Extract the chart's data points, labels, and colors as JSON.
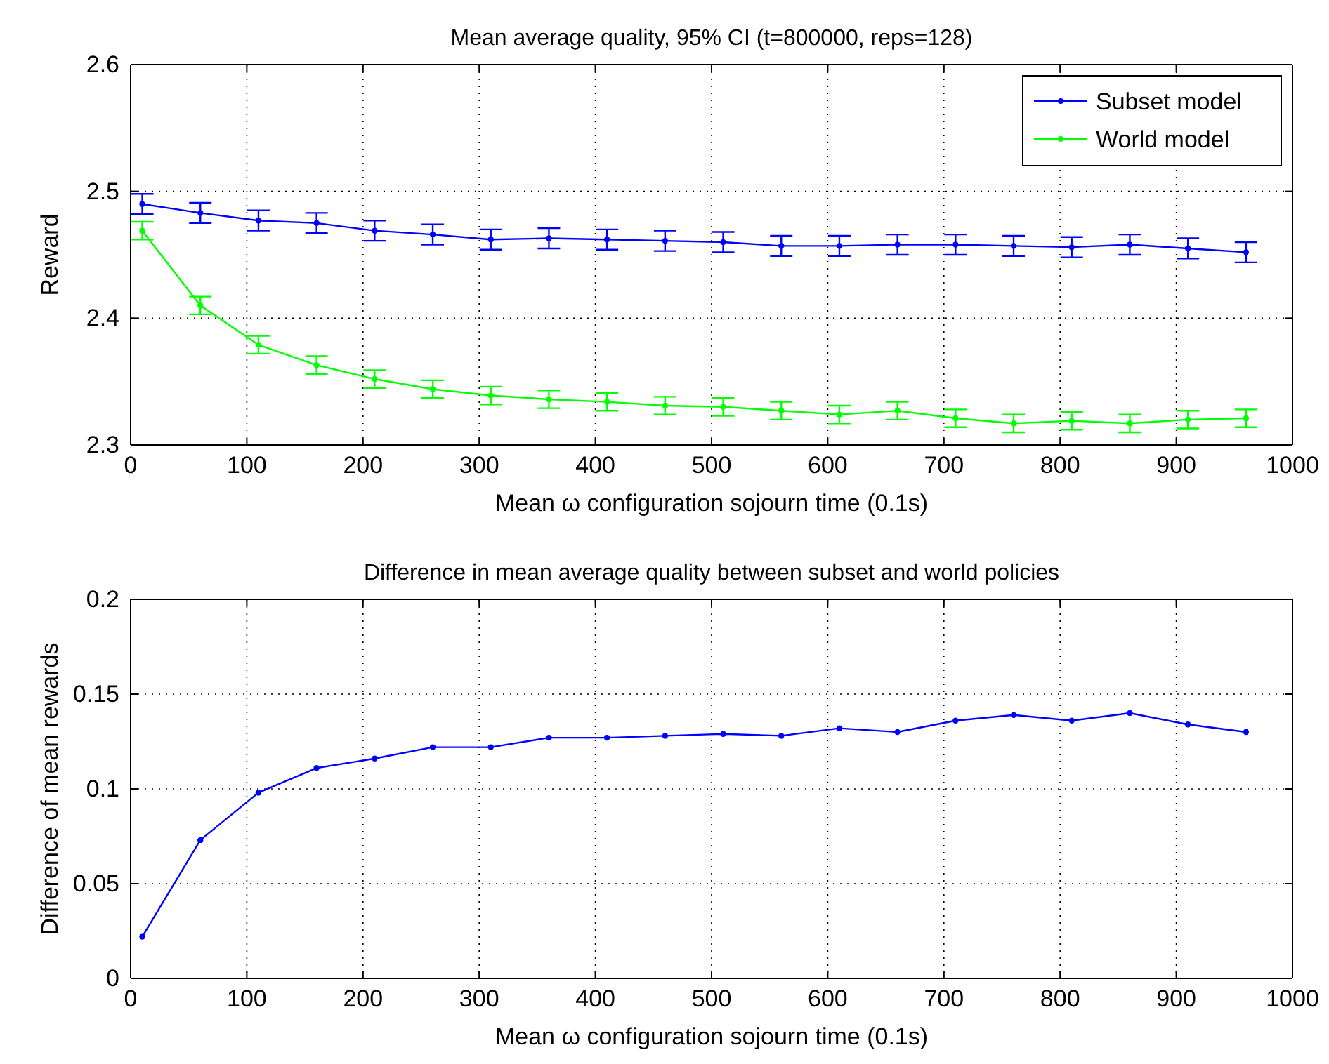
{
  "chart_data": [
    {
      "type": "line",
      "title": "Mean average quality, 95% CI (t=800000, reps=128)",
      "xlabel": "Mean ω configuration sojourn time (0.1s)",
      "ylabel": "Reward",
      "x": [
        10,
        60,
        110,
        160,
        210,
        260,
        310,
        360,
        410,
        460,
        510,
        560,
        610,
        660,
        710,
        760,
        810,
        860,
        910,
        960
      ],
      "series": [
        {
          "name": "Subset model",
          "color": "#0000ff",
          "values": [
            2.49,
            2.483,
            2.477,
            2.475,
            2.469,
            2.466,
            2.462,
            2.463,
            2.462,
            2.461,
            2.46,
            2.457,
            2.457,
            2.458,
            2.458,
            2.457,
            2.456,
            2.458,
            2.455,
            2.452
          ],
          "errors": [
            0.008,
            0.008,
            0.008,
            0.008,
            0.008,
            0.008,
            0.008,
            0.008,
            0.008,
            0.008,
            0.008,
            0.008,
            0.008,
            0.008,
            0.008,
            0.008,
            0.008,
            0.008,
            0.008,
            0.008
          ]
        },
        {
          "name": "World model",
          "color": "#00ff00",
          "values": [
            2.469,
            2.41,
            2.379,
            2.363,
            2.352,
            2.344,
            2.339,
            2.336,
            2.334,
            2.331,
            2.33,
            2.327,
            2.324,
            2.327,
            2.321,
            2.317,
            2.319,
            2.317,
            2.32,
            2.321
          ],
          "errors": [
            0.007,
            0.007,
            0.007,
            0.007,
            0.007,
            0.007,
            0.007,
            0.007,
            0.007,
            0.007,
            0.007,
            0.007,
            0.007,
            0.007,
            0.007,
            0.007,
            0.007,
            0.007,
            0.007,
            0.007
          ]
        }
      ],
      "xlim": [
        0,
        1000
      ],
      "xticks": [
        0,
        100,
        200,
        300,
        400,
        500,
        600,
        700,
        800,
        900,
        1000
      ],
      "ylim": [
        2.3,
        2.6
      ],
      "yticks": [
        2.3,
        2.4,
        2.5,
        2.6
      ],
      "grid": true,
      "legend": "top right",
      "marker": "circle",
      "line_style": "solid"
    },
    {
      "type": "line",
      "title": "Difference in mean average quality between subset and world policies",
      "xlabel": "Mean ω configuration sojourn time (0.1s)",
      "ylabel": "Difference of mean rewards",
      "x": [
        10,
        60,
        110,
        160,
        210,
        260,
        310,
        360,
        410,
        460,
        510,
        560,
        610,
        660,
        710,
        760,
        810,
        860,
        910,
        960
      ],
      "series": [
        {
          "color": "#0000ff",
          "values": [
            0.022,
            0.073,
            0.098,
            0.111,
            0.116,
            0.122,
            0.122,
            0.127,
            0.127,
            0.128,
            0.129,
            0.128,
            0.132,
            0.13,
            0.136,
            0.139,
            0.136,
            0.14,
            0.134,
            0.13
          ]
        }
      ],
      "xlim": [
        0,
        1000
      ],
      "xticks": [
        0,
        100,
        200,
        300,
        400,
        500,
        600,
        700,
        800,
        900,
        1000
      ],
      "ylim": [
        0,
        0.2
      ],
      "yticks": [
        0,
        0.05,
        0.1,
        0.15,
        0.2
      ],
      "grid": true,
      "marker": "circle",
      "line_style": "solid"
    }
  ]
}
